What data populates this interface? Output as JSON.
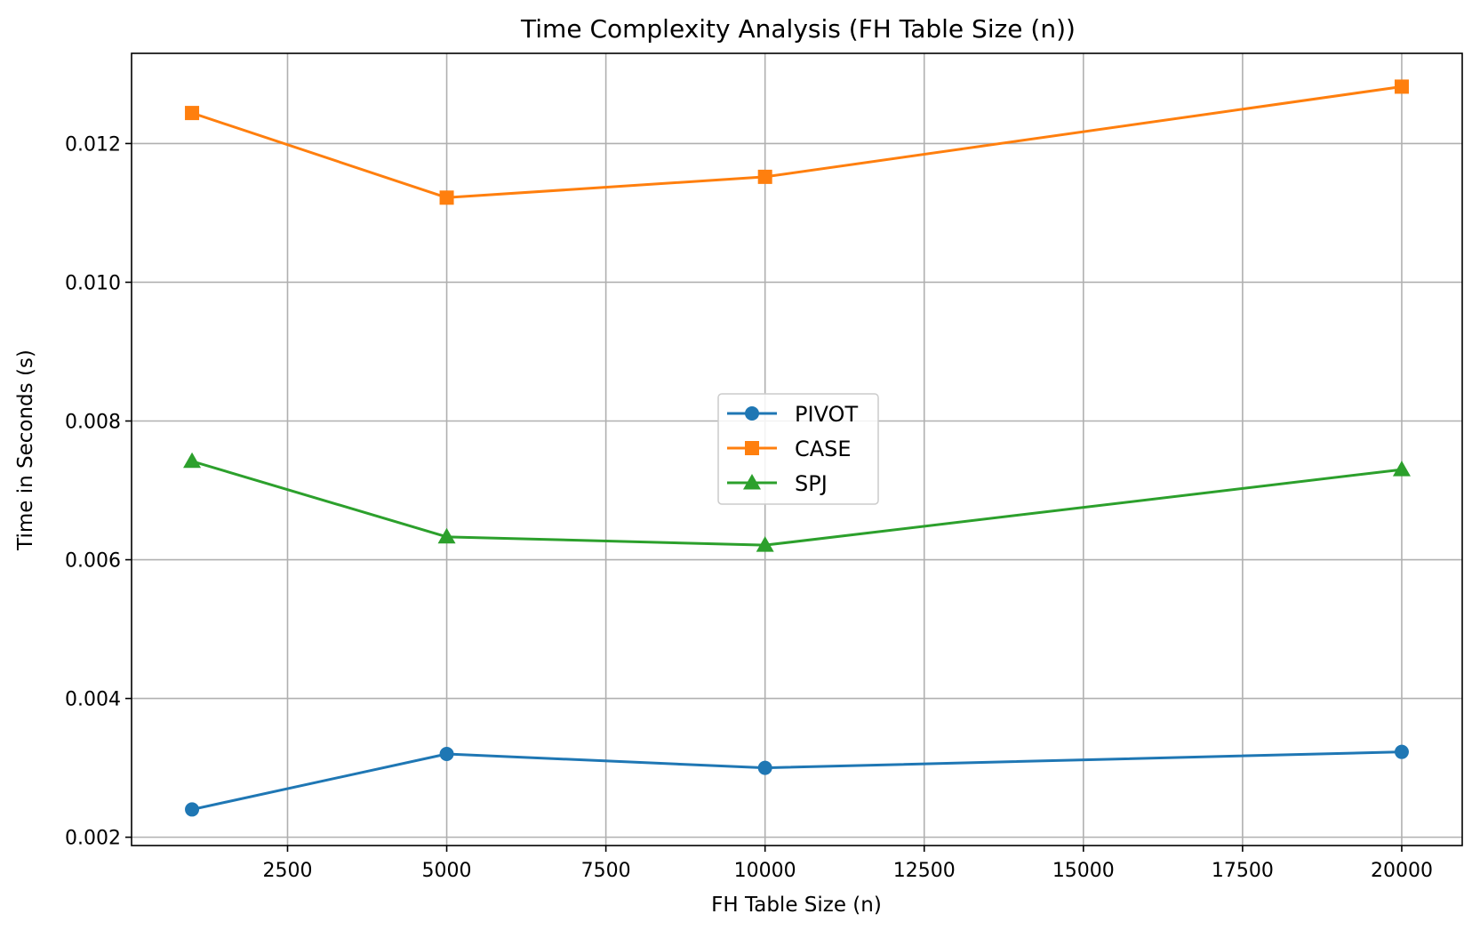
{
  "chart_data": {
    "type": "line",
    "title": "Time Complexity Analysis (FH Table Size (n))",
    "xlabel": "FH Table Size (n)",
    "ylabel": "Time in Seconds (s)",
    "x": [
      1000,
      5000,
      10000,
      20000
    ],
    "xlim": [
      50,
      20950
    ],
    "ylim": [
      0.00188,
      0.0133
    ],
    "xticks": [
      2500,
      5000,
      7500,
      10000,
      12500,
      15000,
      17500,
      20000
    ],
    "xtick_labels": [
      "2500",
      "5000",
      "7500",
      "10000",
      "12500",
      "15000",
      "17500",
      "20000"
    ],
    "yticks": [
      0.002,
      0.004,
      0.006,
      0.008,
      0.01,
      0.012
    ],
    "ytick_labels": [
      "0.002",
      "0.004",
      "0.006",
      "0.008",
      "0.010",
      "0.012"
    ],
    "grid": true,
    "legend_position": "center",
    "series": [
      {
        "name": "PIVOT",
        "values": [
          0.0024,
          0.0032,
          0.003,
          0.00323
        ],
        "color": "#1f77b4",
        "marker": "circle"
      },
      {
        "name": "CASE",
        "values": [
          0.01244,
          0.01122,
          0.01152,
          0.01282
        ],
        "color": "#ff7f0e",
        "marker": "square"
      },
      {
        "name": "SPJ",
        "values": [
          0.00742,
          0.00633,
          0.00621,
          0.0073
        ],
        "color": "#2ca02c",
        "marker": "triangle"
      }
    ]
  }
}
